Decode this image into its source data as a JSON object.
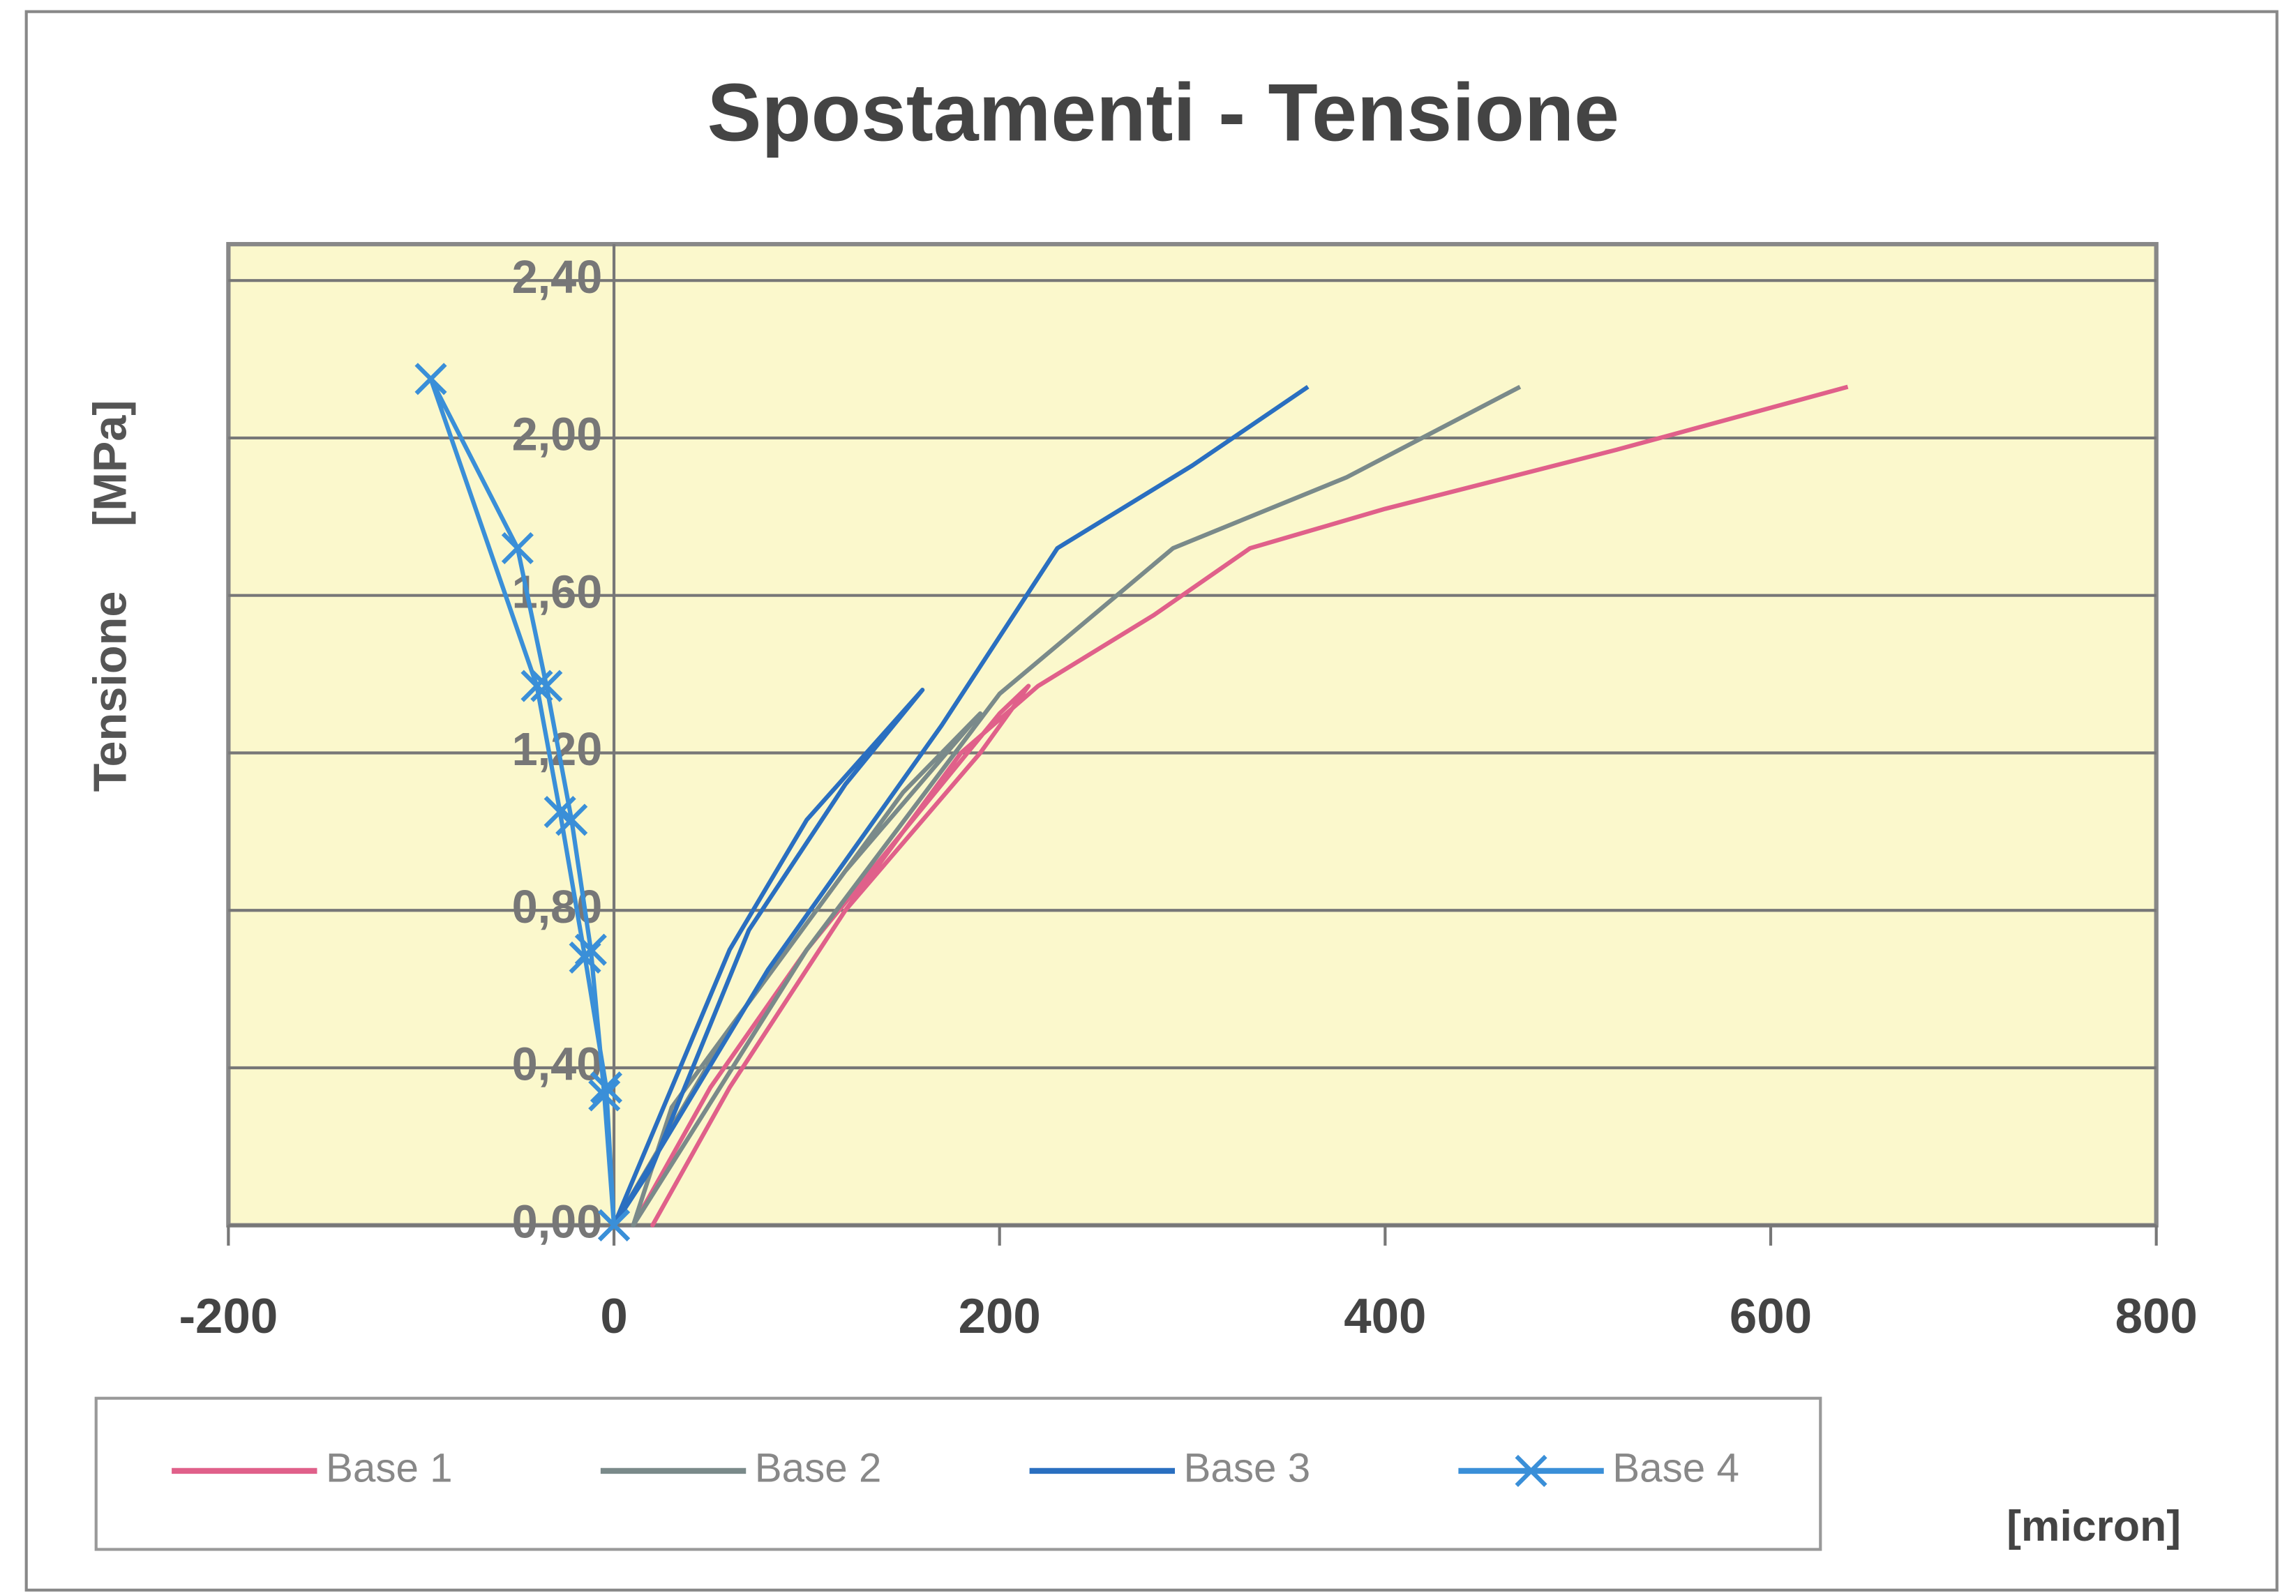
{
  "chart_data": {
    "type": "line",
    "title": "Spostamenti - Tensione",
    "ylabel": "Tensione     [MPa]",
    "xlabel": "[micron]",
    "xlim": [
      -200,
      800
    ],
    "xticks": [
      -200,
      0,
      200,
      400,
      600,
      800
    ],
    "ylim": [
      0,
      2.4
    ],
    "yticks": [
      {
        "value": 0,
        "label": "0,00"
      },
      {
        "value": 0.4,
        "label": "0,40"
      },
      {
        "value": 0.8,
        "label": "0,80"
      },
      {
        "value": 1.2,
        "label": "1,20"
      },
      {
        "value": 1.6,
        "label": "1,60"
      },
      {
        "value": 2.0,
        "label": "2,00"
      },
      {
        "value": 2.4,
        "label": "2,40"
      }
    ],
    "grid": true,
    "legend": "bottom",
    "series": [
      {
        "name": "Base 1",
        "color": "#e0608a",
        "marker": "none",
        "x": [
          10,
          50,
          100,
          150,
          200,
          215,
          190,
          120,
          60,
          20,
          60,
          120,
          180,
          220,
          280,
          330,
          400,
          520,
          640
        ],
        "values": [
          0,
          0.35,
          0.7,
          1.0,
          1.3,
          1.37,
          1.2,
          0.8,
          0.35,
          0,
          0.35,
          0.8,
          1.2,
          1.37,
          1.55,
          1.72,
          1.82,
          1.97,
          2.13
        ]
      },
      {
        "name": "Base 2",
        "color": "#7a8a8a",
        "marker": "none",
        "x": [
          0,
          60,
          120,
          190,
          150,
          90,
          30,
          10,
          100,
          200,
          290,
          380,
          470
        ],
        "values": [
          0,
          0.5,
          0.9,
          1.3,
          1.1,
          0.7,
          0.3,
          0,
          0.7,
          1.35,
          1.72,
          1.9,
          2.13
        ]
      },
      {
        "name": "Base 3",
        "color": "#2a6fc0",
        "marker": "none",
        "x": [
          0,
          60,
          100,
          160,
          120,
          70,
          20,
          0,
          80,
          170,
          230,
          300,
          360
        ],
        "values": [
          0,
          0.7,
          1.03,
          1.36,
          1.12,
          0.75,
          0.15,
          0,
          0.65,
          1.27,
          1.72,
          1.93,
          2.13
        ]
      },
      {
        "name": "Base 4",
        "color": "#3a8fd8",
        "marker": "x",
        "x": [
          0,
          -5,
          -12,
          -22,
          -35,
          -50,
          -95,
          -40,
          -28,
          -15,
          -4,
          0
        ],
        "values": [
          0,
          0.33,
          0.7,
          1.03,
          1.37,
          1.72,
          2.15,
          1.37,
          1.05,
          0.68,
          0.35,
          0
        ]
      }
    ]
  }
}
